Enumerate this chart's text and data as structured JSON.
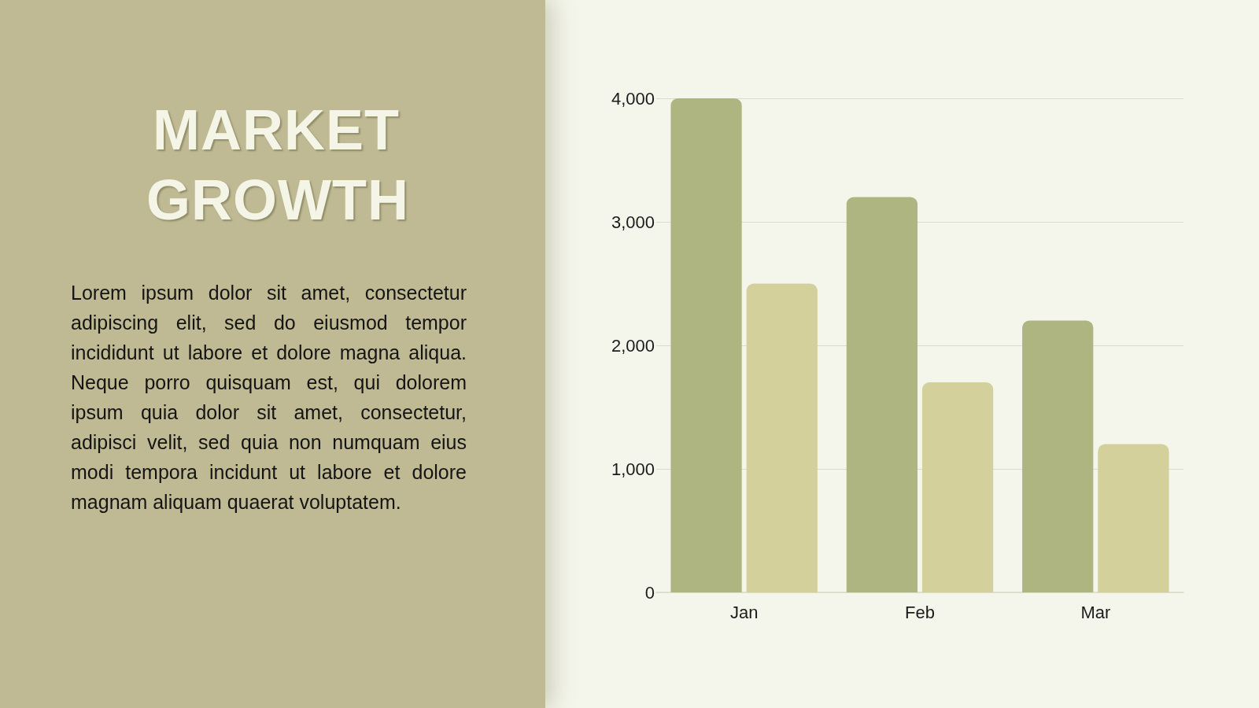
{
  "chart_data": {
    "type": "bar",
    "title": "MARKET GROWTH",
    "annotations": [
      "Lorem ipsum dolor sit amet, consectetur adipiscing elit, sed do eiusmod tempor incididunt ut labore et dolore magna aliqua. Neque porro quisquam est, qui dolorem ipsum quia dolor sit amet, consectetur, adipisci velit, sed quia non numquam eius modi tempora incidunt ut labore et dolore magnam aliquam quaerat voluptatem."
    ],
    "categories": [
      "Jan",
      "Feb",
      "Mar"
    ],
    "series": [
      {
        "color": "#aeb580",
        "values": [
          4000,
          3200,
          2200
        ]
      },
      {
        "color": "#d3d09c",
        "values": [
          2500,
          1700,
          1200
        ]
      }
    ],
    "ylim": [
      0,
      4000
    ],
    "yticks": [
      0,
      {
        "value": 1000,
        "label": "1,000"
      },
      {
        "value": 2000,
        "label": "2,000"
      },
      {
        "value": 3000,
        "label": "3,000"
      },
      {
        "value": 4000,
        "label": "4,000"
      }
    ],
    "grid": "y"
  }
}
